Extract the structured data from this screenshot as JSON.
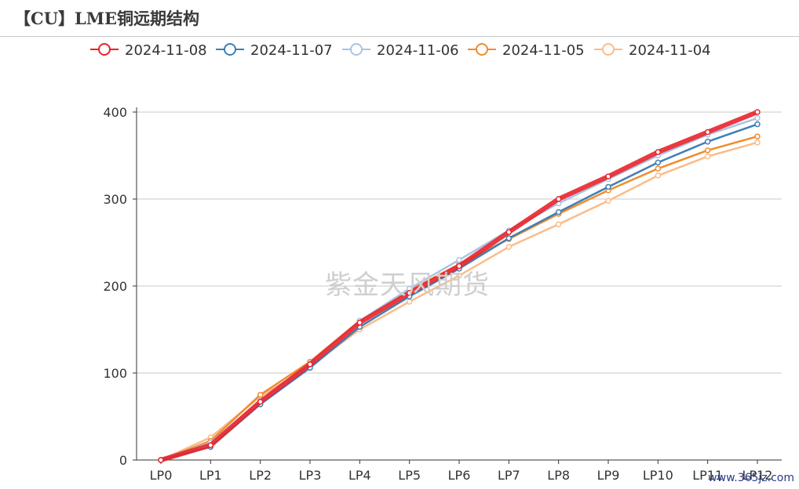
{
  "title": "【CU】LME铜远期结构",
  "watermark": "紫金天风期货",
  "site": "www.365jz.com",
  "chart_data": {
    "type": "line",
    "categories": [
      "LP0",
      "LP1",
      "LP2",
      "LP3",
      "LP4",
      "LP5",
      "LP6",
      "LP7",
      "LP8",
      "LP9",
      "LP10",
      "LP11",
      "LP12"
    ],
    "ylim": [
      0,
      400
    ],
    "yticks": [
      0,
      100,
      200,
      300,
      400
    ],
    "grid": true,
    "legend_position": "top",
    "series": [
      {
        "name": "2024-11-08",
        "color": "#e8232b",
        "values": [
          0,
          17,
          67,
          110,
          158,
          192,
          223,
          262,
          300,
          326,
          354,
          377,
          400
        ]
      },
      {
        "name": "2024-11-07",
        "color": "#3e7fb5",
        "values": [
          0,
          15,
          64,
          106,
          153,
          188,
          220,
          255,
          285,
          314,
          342,
          366,
          386
        ]
      },
      {
        "name": "2024-11-06",
        "color": "#a8c4e6",
        "values": [
          0,
          20,
          68,
          111,
          160,
          197,
          230,
          264,
          295,
          323,
          350,
          374,
          393
        ]
      },
      {
        "name": "2024-11-05",
        "color": "#f08c2e",
        "values": [
          0,
          22,
          75,
          113,
          160,
          195,
          225,
          254,
          283,
          310,
          335,
          356,
          372
        ]
      },
      {
        "name": "2024-11-04",
        "color": "#fbbc8a",
        "values": [
          0,
          26,
          73,
          108,
          150,
          182,
          212,
          245,
          271,
          298,
          327,
          349,
          365
        ]
      }
    ]
  }
}
